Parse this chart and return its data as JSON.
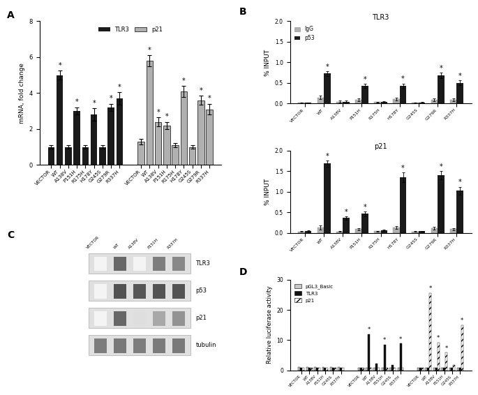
{
  "panel_A": {
    "tlr3_labels": [
      "VECTOR",
      "WT",
      "A138V",
      "P151H",
      "R175H",
      "H178Y",
      "G245S",
      "G279R",
      "R337H"
    ],
    "tlr3_values": [
      1.0,
      5.0,
      1.0,
      3.0,
      1.0,
      2.8,
      1.0,
      3.2,
      3.7
    ],
    "tlr3_errors": [
      0.1,
      0.25,
      0.1,
      0.2,
      0.1,
      0.35,
      0.1,
      0.2,
      0.35
    ],
    "tlr3_sig": [
      false,
      true,
      false,
      true,
      false,
      true,
      false,
      true,
      true
    ],
    "p21_labels": [
      "VECTOR",
      "WT",
      "A138V",
      "P151H",
      "R175H",
      "H178Y",
      "G245S",
      "G279R",
      "R337H"
    ],
    "p21_values": [
      1.3,
      5.8,
      2.4,
      2.2,
      1.1,
      4.1,
      1.0,
      3.6,
      3.1
    ],
    "p21_errors": [
      0.15,
      0.3,
      0.25,
      0.2,
      0.1,
      0.3,
      0.1,
      0.25,
      0.3
    ],
    "p21_sig": [
      false,
      true,
      true,
      true,
      false,
      true,
      false,
      true,
      true
    ],
    "ylabel": "mRNA, fold change",
    "ylim": [
      0,
      8
    ],
    "yticks": [
      0,
      2,
      4,
      6,
      8
    ],
    "tlr3_color": "#1a1a1a",
    "p21_color": "#b0b0b0"
  },
  "panel_B_tlr3": {
    "labels": [
      "VECTOR",
      "WT",
      "A138V",
      "P151H",
      "R175H",
      "H178Y",
      "G245S",
      "G279R",
      "R337H"
    ],
    "igg_values": [
      0.02,
      0.15,
      0.05,
      0.09,
      0.04,
      0.11,
      0.02,
      0.09,
      0.09
    ],
    "p53_values": [
      0.02,
      0.73,
      0.05,
      0.43,
      0.04,
      0.43,
      0.03,
      0.68,
      0.5
    ],
    "igg_errors": [
      0.01,
      0.04,
      0.02,
      0.03,
      0.01,
      0.04,
      0.01,
      0.03,
      0.03
    ],
    "p53_errors": [
      0.01,
      0.06,
      0.02,
      0.05,
      0.02,
      0.06,
      0.01,
      0.07,
      0.06
    ],
    "p53_sig": [
      false,
      true,
      false,
      true,
      false,
      true,
      false,
      true,
      true
    ],
    "title": "TLR3",
    "ylabel": "% INPUT",
    "ylim": [
      0,
      2.0
    ],
    "yticks": [
      0.0,
      0.5,
      1.0,
      1.5,
      2.0
    ]
  },
  "panel_B_p21": {
    "labels": [
      "VECTOR",
      "WT",
      "A138V",
      "P151H",
      "R175H",
      "H178Y",
      "G245S",
      "G279R",
      "R337H"
    ],
    "igg_values": [
      0.03,
      0.13,
      0.03,
      0.09,
      0.04,
      0.13,
      0.03,
      0.11,
      0.09
    ],
    "p53_values": [
      0.04,
      1.68,
      0.36,
      0.46,
      0.06,
      1.35,
      0.04,
      1.4,
      1.02
    ],
    "igg_errors": [
      0.01,
      0.05,
      0.01,
      0.03,
      0.01,
      0.04,
      0.01,
      0.04,
      0.03
    ],
    "p53_errors": [
      0.02,
      0.08,
      0.04,
      0.06,
      0.02,
      0.12,
      0.01,
      0.1,
      0.1
    ],
    "p53_sig": [
      false,
      true,
      true,
      true,
      false,
      true,
      false,
      true,
      true
    ],
    "title": "p21",
    "ylabel": "% INPUT",
    "ylim": [
      0,
      2.0
    ],
    "yticks": [
      0.0,
      0.5,
      1.0,
      1.5,
      2.0
    ]
  },
  "panel_D": {
    "group1_labels": [
      "VECTOR",
      "WT",
      "A138V",
      "P151H",
      "G245S",
      "R337H"
    ],
    "group1_pgl3": [
      1.0,
      1.1,
      1.1,
      1.1,
      1.1,
      1.1
    ],
    "group1_tlr3": [
      0.8,
      0.8,
      0.8,
      0.8,
      0.8,
      0.8
    ],
    "group1_p21": [
      0.8,
      0.8,
      0.8,
      0.8,
      0.8,
      0.8
    ],
    "group2_labels": [
      "VECTOR",
      "WT",
      "A138V",
      "P151H",
      "G245S",
      "R337H"
    ],
    "group2_pgl3": [
      0.8,
      0.8,
      0.8,
      0.8,
      0.8,
      0.8
    ],
    "group2_tlr3": [
      0.8,
      12.0,
      2.2,
      8.5,
      1.8,
      8.8
    ],
    "group2_p21": [
      0.8,
      0.8,
      0.8,
      0.8,
      0.8,
      0.8
    ],
    "group2_tlr3_sig": [
      false,
      true,
      false,
      true,
      false,
      true
    ],
    "group3_labels": [
      "VECTOR",
      "WT",
      "A138V",
      "P151H",
      "G245S",
      "R337H"
    ],
    "group3_pgl3": [
      0.8,
      0.8,
      0.8,
      0.8,
      0.8,
      0.8
    ],
    "group3_tlr3": [
      0.8,
      0.8,
      0.8,
      0.8,
      0.8,
      0.8
    ],
    "group3_p21": [
      0.8,
      25.5,
      9.2,
      5.8,
      1.8,
      15.0
    ],
    "group3_p21_sig": [
      false,
      true,
      true,
      true,
      false,
      true
    ],
    "ylabel": "Relative luciferase activity",
    "ylim": [
      0,
      30
    ],
    "yticks": [
      0,
      10,
      20,
      30
    ]
  },
  "igg_color": "#b0b0b0",
  "p53_color": "#1a1a1a",
  "pgl3_color": "#c8c8c8",
  "tlr3_bar_color": "#111111",
  "p21_hatch_color": "#555555"
}
